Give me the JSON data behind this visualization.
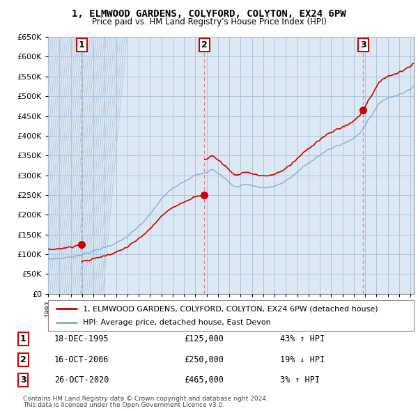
{
  "title": "1, ELMWOOD GARDENS, COLYFORD, COLYTON, EX24 6PW",
  "subtitle": "Price paid vs. HM Land Registry's House Price Index (HPI)",
  "sale_times": [
    1995.958,
    2006.792,
    2020.833
  ],
  "sale_prices": [
    125000,
    250000,
    465000
  ],
  "sale_labels": [
    "1",
    "2",
    "3"
  ],
  "table_rows": [
    [
      "1",
      "18-DEC-1995",
      "£125,000",
      "43% ↑ HPI"
    ],
    [
      "2",
      "16-OCT-2006",
      "£250,000",
      "19% ↓ HPI"
    ],
    [
      "3",
      "26-OCT-2020",
      "£465,000",
      "3% ↑ HPI"
    ]
  ],
  "legend_line1": "1, ELMWOOD GARDENS, COLYFORD, COLYTON, EX24 6PW (detached house)",
  "legend_line2": "HPI: Average price, detached house, East Devon",
  "footnote1": "Contains HM Land Registry data © Crown copyright and database right 2024.",
  "footnote2": "This data is licensed under the Open Government Licence v3.0.",
  "red_line_color": "#cc0000",
  "blue_line_color": "#7aabcd",
  "bg_color": "#dce9f5",
  "hatch_color": "#b0c4d8",
  "grid_color": "#adc4da",
  "vline_color": "#e88080",
  "ylim": [
    0,
    650000
  ],
  "yticks": [
    0,
    50000,
    100000,
    150000,
    200000,
    250000,
    300000,
    350000,
    400000,
    450000,
    500000,
    550000,
    600000,
    650000
  ],
  "hpi_anchors_x": [
    1993.0,
    1994.0,
    1995.0,
    1996.0,
    1997.0,
    1998.0,
    1999.0,
    2000.0,
    2001.0,
    2002.0,
    2003.0,
    2004.0,
    2005.0,
    2006.0,
    2006.8,
    2007.5,
    2008.5,
    2009.5,
    2010.5,
    2011.5,
    2012.5,
    2013.5,
    2014.5,
    2015.5,
    2016.5,
    2017.5,
    2018.5,
    2019.5,
    2020.5,
    2021.5,
    2022.5,
    2023.5,
    2024.5,
    2025.2
  ],
  "hpi_anchors_y": [
    88000,
    90000,
    93000,
    100000,
    108000,
    118000,
    128000,
    145000,
    170000,
    200000,
    240000,
    268000,
    285000,
    300000,
    305000,
    315000,
    295000,
    270000,
    278000,
    270000,
    268000,
    278000,
    295000,
    320000,
    342000,
    360000,
    375000,
    385000,
    405000,
    450000,
    490000,
    500000,
    510000,
    525000
  ]
}
